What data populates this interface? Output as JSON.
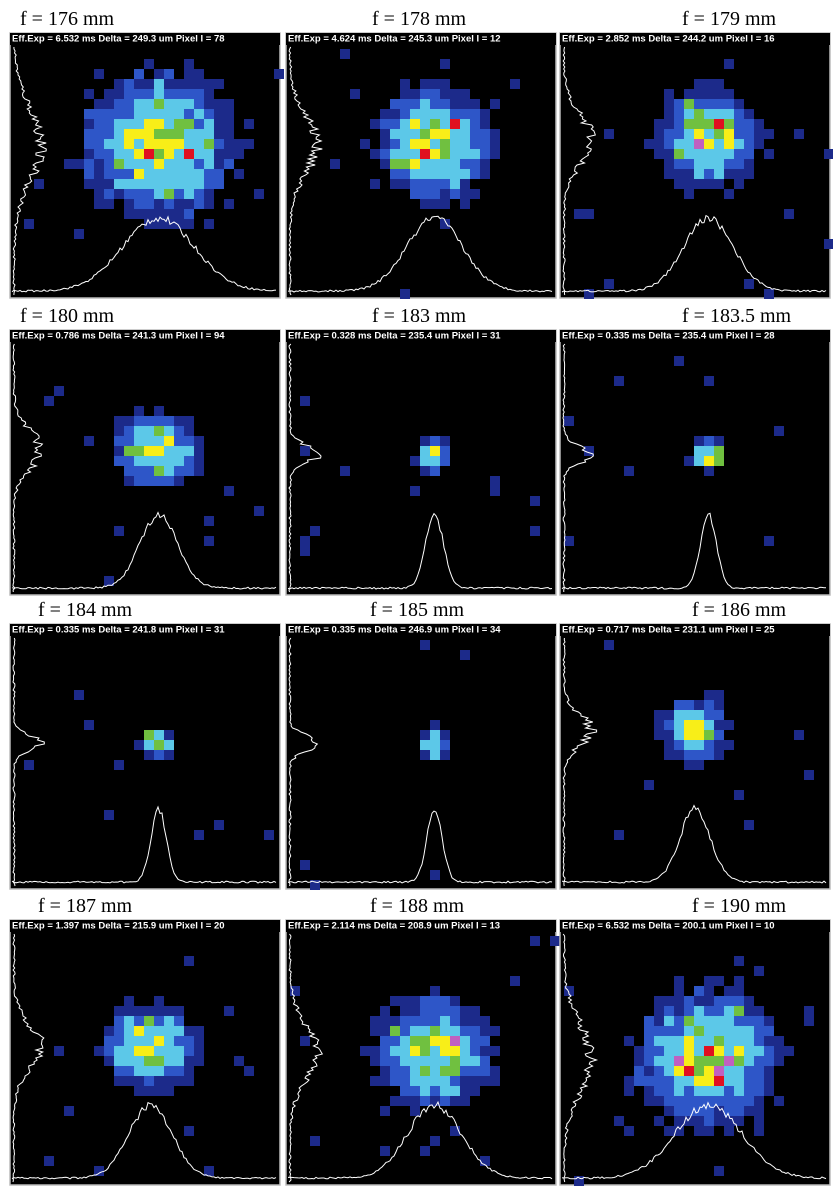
{
  "panels": [
    {
      "label": "f = 176 mm",
      "info": "Eff.Exp = 6.532 ms  Delta = 249.3 um Pixel I = 78"
    },
    {
      "label": "f = 178 mm",
      "info": "Eff.Exp = 4.624 ms  Delta = 245.3 um Pixel I = 12"
    },
    {
      "label": "f = 179 mm",
      "info": "Eff.Exp = 2.852 ms  Delta = 244.2 um Pixel I = 16"
    },
    {
      "label": "f = 180 mm",
      "info": "Eff.Exp = 0.786 ms  Delta = 241.3 um Pixel I = 94"
    },
    {
      "label": "f = 183 mm",
      "info": "Eff.Exp = 0.328 ms  Delta = 235.4 um Pixel I = 31"
    },
    {
      "label": "f = 183.5 mm",
      "info": "Eff.Exp = 0.335 ms  Delta = 235.4 um Pixel I = 28"
    },
    {
      "label": "f = 184 mm",
      "info": "Eff.Exp = 0.335 ms  Delta = 241.8 um Pixel I = 31"
    },
    {
      "label": "f = 185 mm",
      "info": "Eff.Exp = 0.335 ms  Delta = 246.9 um Pixel I = 34"
    },
    {
      "label": "f = 186 mm",
      "info": "Eff.Exp = 0.717 ms  Delta = 231.1 um Pixel I = 25"
    },
    {
      "label": "f = 187 mm",
      "info": "Eff.Exp = 1.397 ms  Delta = 215.9 um Pixel I = 20"
    },
    {
      "label": "f = 188 mm",
      "info": "Eff.Exp = 2.114 ms  Delta = 208.9 um Pixel I = 13"
    },
    {
      "label": "f = 190 mm",
      "info": "Eff.Exp = 6.532 ms  Delta = 200.1 um Pixel I = 10"
    }
  ]
}
